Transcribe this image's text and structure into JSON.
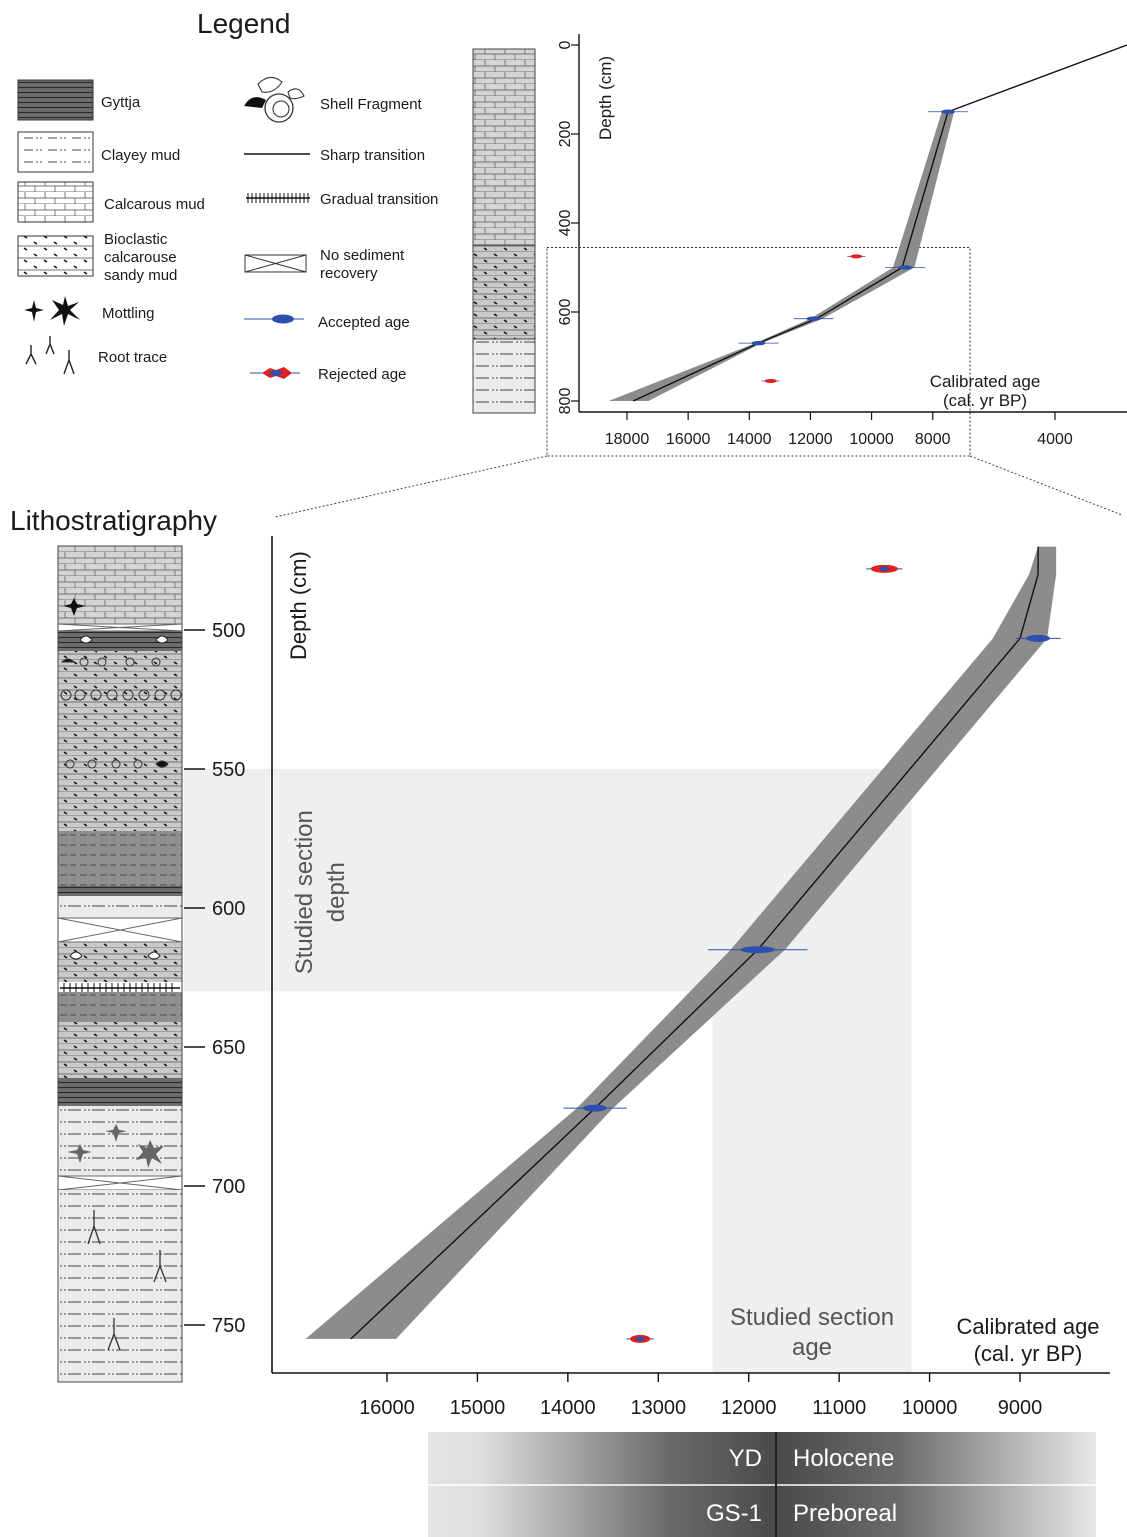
{
  "legend": {
    "title": "Legend",
    "items_left": [
      {
        "label": "Gyttja",
        "icon": "gyttja-pattern-icon"
      },
      {
        "label": "Clayey mud",
        "icon": "clayey-mud-pattern-icon"
      },
      {
        "label": "Calcarous mud",
        "icon": "calcarous-mud-pattern-icon"
      },
      {
        "label": "Bioclastic\ncalcarouse\nsandy mud",
        "icon": "bioclastic-mud-pattern-icon"
      },
      {
        "label": "Mottling",
        "icon": "mottling-icon"
      },
      {
        "label": "Root trace",
        "icon": "root-trace-icon"
      }
    ],
    "items_right": [
      {
        "label": "Shell Fragment",
        "icon": "shell-fragment-icon"
      },
      {
        "label": "Sharp transition",
        "icon": "sharp-transition-icon"
      },
      {
        "label": "Gradual transition",
        "icon": "gradual-transition-icon"
      },
      {
        "label": "No sediment\nrecovery",
        "icon": "no-recovery-icon"
      },
      {
        "label": "Accepted age",
        "icon": "accepted-age-icon"
      },
      {
        "label": "Rejected age",
        "icon": "rejected-age-icon"
      }
    ]
  },
  "lithostratigraphy_title": "Lithostratigraphy",
  "colors": {
    "accepted": "#2c4fb0",
    "rejected": "#e02020",
    "envelope": "#8c8c8c",
    "model_line": "#111111",
    "studied_shade": "#eef0ef"
  },
  "chart_data": [
    {
      "type": "line",
      "title": "",
      "xlabel": "Calibrated age\n(cal. yr BP)",
      "ylabel": "Depth (cm)",
      "x_reversed": true,
      "y_reversed": true,
      "xlim": [
        19000,
        1000
      ],
      "ylim": [
        0,
        800
      ],
      "xticks": [
        18000,
        16000,
        14000,
        12000,
        10000,
        8000,
        4000
      ],
      "yticks": [
        0,
        200,
        400,
        600,
        800
      ],
      "model": {
        "x": [
          17800,
          13700,
          11800,
          9000,
          7500,
          1000
        ],
        "y": [
          800,
          670,
          615,
          500,
          150,
          0
        ]
      },
      "envelope": {
        "upper": [
          18600,
          13800,
          12000,
          9300,
          7700
        ],
        "lower": [
          17300,
          13600,
          11600,
          8600,
          7300
        ],
        "y": [
          800,
          670,
          615,
          500,
          150
        ]
      },
      "accepted_ages": [
        {
          "x": 7500,
          "y": 150
        },
        {
          "x": 8900,
          "y": 500
        },
        {
          "x": 11900,
          "y": 615
        },
        {
          "x": 13700,
          "y": 670
        }
      ],
      "rejected_ages": [
        {
          "x": 10500,
          "y": 475
        },
        {
          "x": 13300,
          "y": 755
        }
      ],
      "zoom_box": {
        "x": [
          19000,
          8000
        ],
        "y": [
          455,
          800
        ]
      }
    },
    {
      "type": "line",
      "title": "",
      "xlabel": "Calibrated age\n(cal. yr BP)",
      "ylabel": "Depth (cm)",
      "x_reversed": true,
      "y_reversed": true,
      "xlim": [
        17000,
        8200
      ],
      "ylim": [
        470,
        770
      ],
      "xticks": [
        16000,
        15000,
        14000,
        13000,
        12000,
        11000,
        10000,
        9000
      ],
      "yticks": [
        500,
        550,
        600,
        650,
        700,
        750
      ],
      "model": {
        "x": [
          16400,
          13700,
          11900,
          9000,
          8800,
          8800
        ],
        "y": [
          755,
          672,
          615,
          503,
          480,
          470
        ]
      },
      "envelope": {
        "upper": [
          16900,
          13900,
          12200,
          9300,
          8900,
          8800
        ],
        "lower": [
          15900,
          13500,
          11600,
          8700,
          8600,
          8600
        ],
        "y": [
          755,
          672,
          615,
          503,
          480,
          470
        ]
      },
      "accepted_ages": [
        {
          "x": 8800,
          "y": 503,
          "err": 250
        },
        {
          "x": 11900,
          "y": 615,
          "err": 550
        },
        {
          "x": 13700,
          "y": 672,
          "err": 350
        }
      ],
      "rejected_ages": [
        {
          "x": 10500,
          "y": 478,
          "err": 200
        },
        {
          "x": 13200,
          "y": 755,
          "err": 150
        }
      ],
      "studied_depth": {
        "from": 550,
        "to": 630,
        "label": "Studied section\ndepth"
      },
      "studied_age": {
        "from": 12400,
        "to": 10200,
        "label": "Studied section\nage"
      },
      "chronozones": [
        {
          "left": "YD",
          "right": "Holocene"
        },
        {
          "left": "GS-1",
          "right": "Preboreal"
        }
      ],
      "boundary_age": 11700
    }
  ]
}
